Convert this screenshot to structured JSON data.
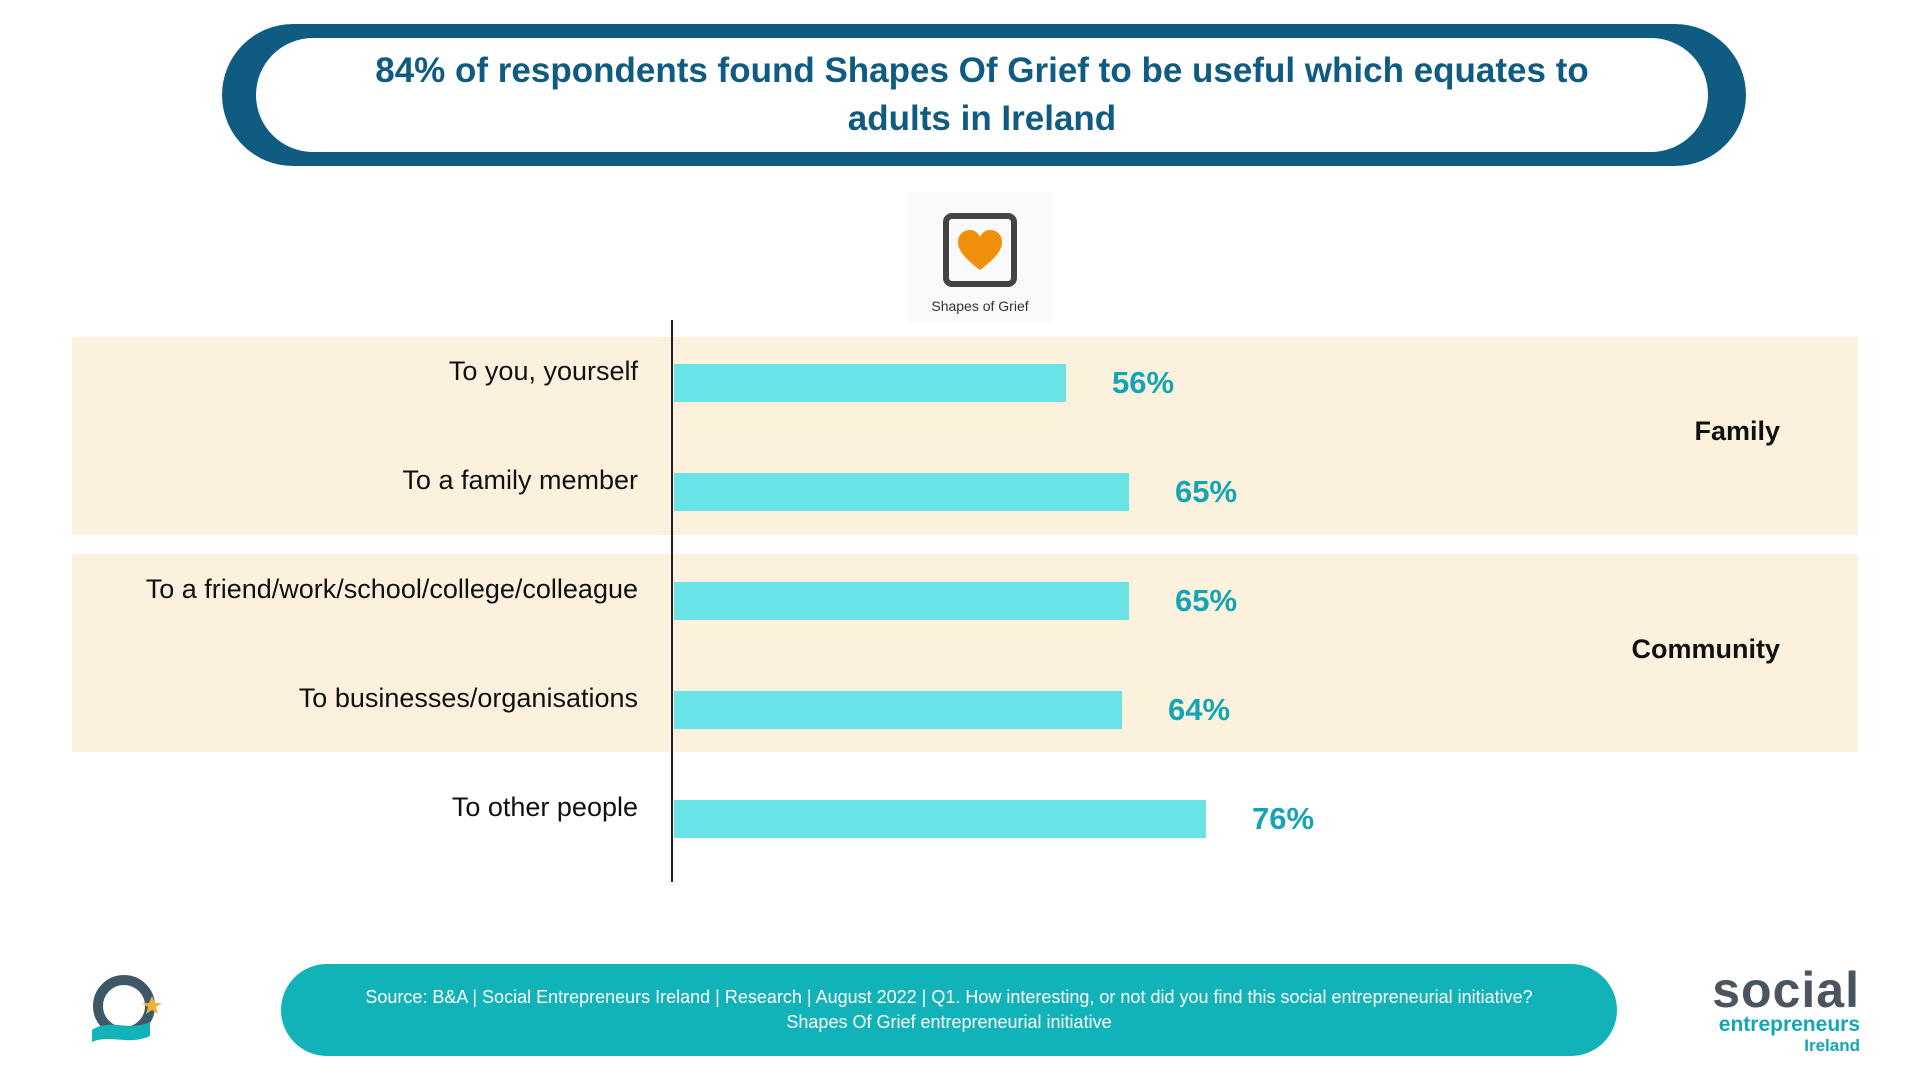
{
  "title": "84% of respondents found Shapes Of Grief to be useful which equates to adults in Ireland",
  "logo": {
    "caption": "Shapes of Grief",
    "icon": "heart-square-icon",
    "icon_color": "#f0900a"
  },
  "groups": {
    "family": "Family",
    "community": "Community"
  },
  "chart_data": {
    "type": "bar",
    "orientation": "horizontal",
    "categories": [
      "To you, yourself",
      "To a family member",
      "To a friend/work/school/college/colleague",
      "To businesses/organisations",
      "To other people"
    ],
    "values": [
      56,
      65,
      65,
      64,
      76
    ],
    "value_labels": [
      "56%",
      "65%",
      "65%",
      "64%",
      "76%"
    ],
    "unit": "%",
    "xlim": [
      0,
      100
    ],
    "grid": false,
    "bar_color": "#6ae3e7",
    "label_color": "#14a5b5",
    "band_color": "#fbf1dd"
  },
  "footer": {
    "line1": "Source: B&A  |  Social Entrepreneurs Ireland  | Research  | August 2022 | Q1. How interesting, or not did you find this social entrepreneurial initiative?",
    "line2": "Shapes Of Grief entrepreneurial initiative"
  },
  "brand": {
    "social": "social",
    "entrepreneurs": "entrepreneurs",
    "ireland": "Ireland",
    "left_logo_icon": "sei-emblem-icon",
    "primary_color": "#0f5b82",
    "accent_color": "#11b2b8"
  }
}
